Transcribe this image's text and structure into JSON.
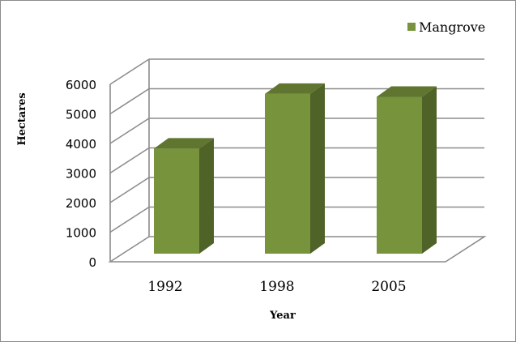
{
  "chart_data": {
    "type": "bar",
    "style": "3d-column",
    "categories": [
      "1992",
      "1998",
      "2005"
    ],
    "series": [
      {
        "name": "Mangrove",
        "values": [
          4100,
          5950,
          5850
        ],
        "color": "#77933c"
      }
    ],
    "xlabel": "Year",
    "ylabel": "Hectares",
    "ylim": [
      0,
      6000
    ],
    "yticks": [
      "0",
      "1000",
      "2000",
      "3000",
      "4000",
      "5000",
      "6000"
    ],
    "grid": true,
    "legend_position": "top-right",
    "colors": {
      "bar_front": "#77933c",
      "bar_side": "#4f6228",
      "bar_top": "#5f7530",
      "gridline": "#8c8c8c"
    }
  }
}
